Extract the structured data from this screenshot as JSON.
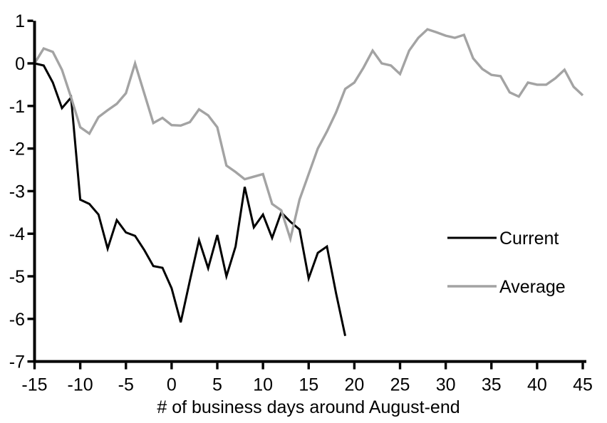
{
  "colors": {
    "background": "#ffffff",
    "axis": "#000000",
    "current_line": "#000000",
    "average_line": "#a3a3a3",
    "label_text": "#000000"
  },
  "legend": {
    "entries": [
      {
        "label": "Current",
        "color": "#000000"
      },
      {
        "label": "Average",
        "color": "#a3a3a3"
      }
    ]
  },
  "chart_data": {
    "type": "line",
    "title": "",
    "xlabel": "# of business days around August-end",
    "ylabel": "",
    "xlim": [
      -15,
      45
    ],
    "ylim": [
      -7,
      1
    ],
    "xticks": [
      -15,
      -10,
      -5,
      0,
      5,
      10,
      15,
      20,
      25,
      30,
      35,
      40,
      45
    ],
    "yticks": [
      1,
      0,
      -1,
      -2,
      -3,
      -4,
      -5,
      -6,
      -7
    ],
    "grid": false,
    "legend_position": "right-middle",
    "series": [
      {
        "name": "Current",
        "color": "#000000",
        "stroke_width": 3,
        "x": [
          -15,
          -14,
          -13,
          -12,
          -11,
          -10,
          -9,
          -8,
          -7,
          -6,
          -5,
          -4,
          -3,
          -2,
          -1,
          0,
          1,
          2,
          3,
          4,
          5,
          6,
          7,
          8,
          9,
          10,
          11,
          12,
          13,
          14,
          15,
          16,
          17,
          18,
          19
        ],
        "values": [
          0,
          -0.05,
          -0.45,
          -1.05,
          -0.8,
          -3.2,
          -3.3,
          -3.55,
          -4.35,
          -3.68,
          -3.97,
          -4.05,
          -4.38,
          -4.76,
          -4.8,
          -5.28,
          -6.08,
          -5.1,
          -4.15,
          -4.81,
          -4.03,
          -5.0,
          -4.3,
          -2.9,
          -3.85,
          -3.55,
          -4.1,
          -3.5,
          -3.72,
          -3.9,
          -5.05,
          -4.45,
          -4.3,
          -5.4,
          -6.4
        ]
      },
      {
        "name": "Average",
        "color": "#a3a3a3",
        "stroke_width": 3.4,
        "x": [
          -15,
          -14,
          -13,
          -12,
          -11,
          -10,
          -9,
          -8,
          -7,
          -6,
          -5,
          -4,
          -3,
          -2,
          -1,
          0,
          1,
          2,
          3,
          4,
          5,
          6,
          7,
          8,
          9,
          10,
          11,
          12,
          13,
          14,
          15,
          16,
          17,
          18,
          19,
          20,
          21,
          22,
          23,
          24,
          25,
          26,
          27,
          28,
          29,
          30,
          31,
          32,
          33,
          34,
          35,
          36,
          37,
          38,
          39,
          40,
          41,
          42,
          43,
          44,
          45
        ],
        "values": [
          0,
          0.35,
          0.27,
          -0.15,
          -0.8,
          -1.5,
          -1.65,
          -1.26,
          -1.1,
          -0.95,
          -0.7,
          0.0,
          -0.7,
          -1.4,
          -1.28,
          -1.45,
          -1.46,
          -1.38,
          -1.08,
          -1.22,
          -1.5,
          -2.4,
          -2.55,
          -2.72,
          -2.66,
          -2.6,
          -3.3,
          -3.45,
          -4.12,
          -3.2,
          -2.6,
          -2.0,
          -1.6,
          -1.15,
          -0.6,
          -0.45,
          -0.1,
          0.3,
          0.0,
          -0.05,
          -0.25,
          0.3,
          0.6,
          0.8,
          0.73,
          0.65,
          0.6,
          0.67,
          0.12,
          -0.13,
          -0.27,
          -0.3,
          -0.68,
          -0.78,
          -0.45,
          -0.5,
          -0.5,
          -0.35,
          -0.15,
          -0.55,
          -0.75
        ]
      }
    ]
  }
}
